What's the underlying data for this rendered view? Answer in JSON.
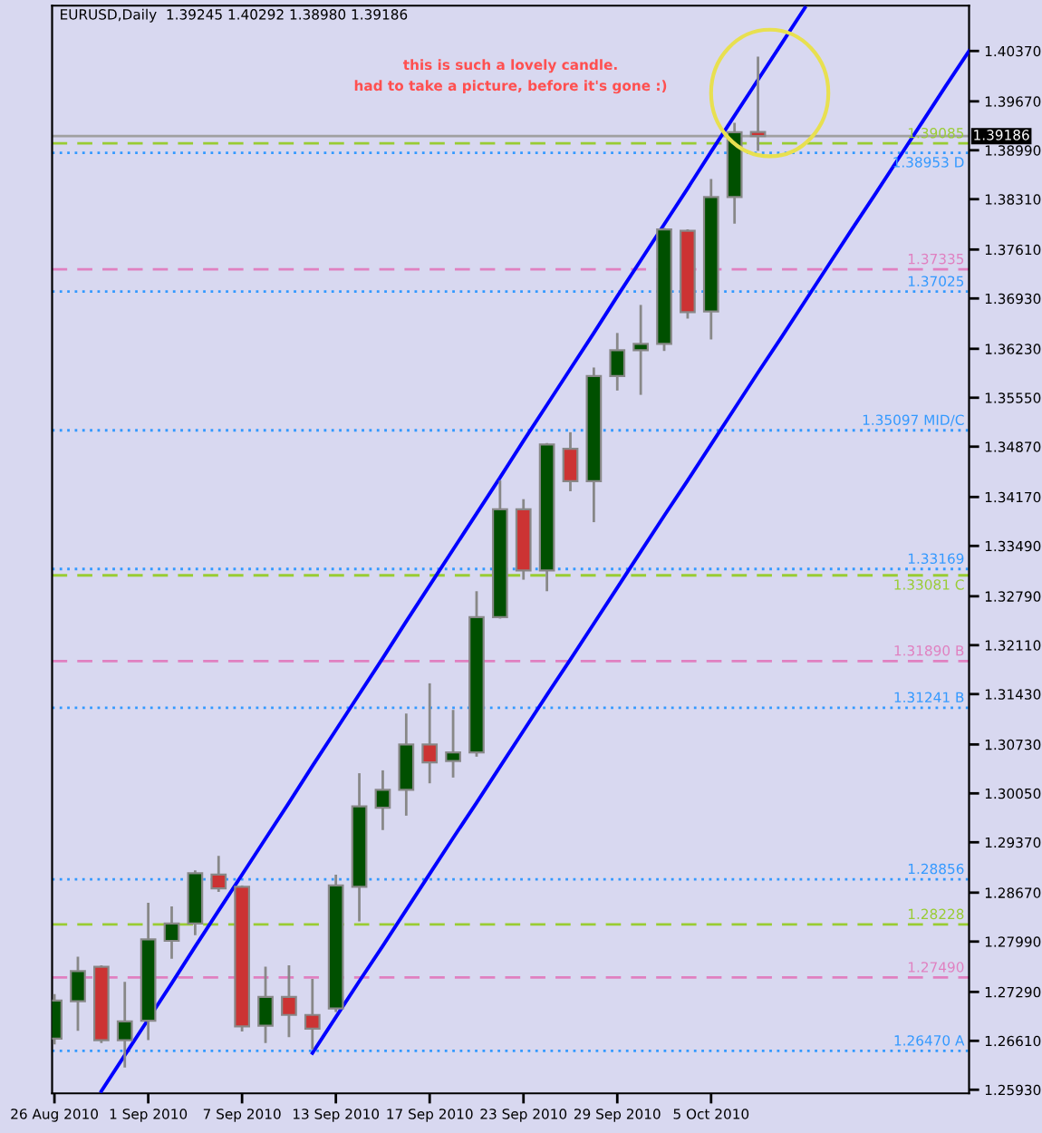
{
  "chart_data": {
    "type": "candlestick",
    "title": "EURUSD,Daily  1.39245 1.40292 1.38980 1.39186",
    "categories": [
      "26 Aug 2010",
      null,
      null,
      null,
      "1 Sep 2010",
      null,
      null,
      null,
      "7 Sep 2010",
      null,
      null,
      null,
      "13 Sep 2010",
      null,
      null,
      null,
      "17 Sep 2010",
      null,
      null,
      null,
      "23 Sep 2010",
      null,
      null,
      null,
      "29 Sep 2010",
      null,
      null,
      null,
      "5 Oct 2010",
      null,
      null,
      null,
      null,
      null,
      null,
      null,
      null,
      null,
      null,
      null
    ],
    "ohlc": [
      [
        1.2664,
        1.2726,
        1.2656,
        1.2717
      ],
      [
        1.2716,
        1.2778,
        1.2675,
        1.2758
      ],
      [
        1.2764,
        1.2766,
        1.2658,
        1.2662
      ],
      [
        1.2662,
        1.2743,
        1.2624,
        1.2688
      ],
      [
        1.2689,
        1.2853,
        1.2662,
        1.2802
      ],
      [
        1.28,
        1.2848,
        1.2775,
        1.2824
      ],
      [
        1.2824,
        1.2898,
        1.2808,
        1.2894
      ],
      [
        1.2892,
        1.2918,
        1.2868,
        1.2873
      ],
      [
        1.2875,
        1.2877,
        1.2674,
        1.2681
      ],
      [
        1.2682,
        1.2764,
        1.2658,
        1.2722
      ],
      [
        1.2722,
        1.2766,
        1.2666,
        1.2697
      ],
      [
        1.2697,
        1.2747,
        1.2649,
        1.2678
      ],
      [
        1.2706,
        1.2892,
        1.2701,
        1.2877
      ],
      [
        1.2875,
        1.3033,
        1.2827,
        1.2987
      ],
      [
        1.2985,
        1.3037,
        1.2954,
        1.301
      ],
      [
        1.301,
        1.3116,
        1.2974,
        1.3073
      ],
      [
        1.3073,
        1.3158,
        1.3019,
        1.3048
      ],
      [
        1.305,
        1.3121,
        1.3027,
        1.3062
      ],
      [
        1.3062,
        1.3286,
        1.3056,
        1.325
      ],
      [
        1.325,
        1.344,
        1.3248,
        1.34
      ],
      [
        1.34,
        1.3414,
        1.3302,
        1.3315
      ],
      [
        1.3315,
        1.3492,
        1.3286,
        1.349
      ],
      [
        1.3484,
        1.3507,
        1.3425,
        1.3439
      ],
      [
        1.3439,
        1.3597,
        1.3382,
        1.3585
      ],
      [
        1.3585,
        1.3645,
        1.3565,
        1.3621
      ],
      [
        1.3621,
        1.3684,
        1.3559,
        1.363
      ],
      [
        1.363,
        1.3791,
        1.362,
        1.3789
      ],
      [
        1.3787,
        1.3789,
        1.3665,
        1.3674
      ],
      [
        1.3675,
        1.3859,
        1.3636,
        1.3834
      ],
      [
        1.3834,
        1.3937,
        1.3797,
        1.3924
      ],
      [
        1.39245,
        1.40292,
        1.3898,
        1.39186
      ],
      null,
      null,
      null,
      null,
      null,
      null,
      null,
      null,
      null
    ],
    "colors": [
      "#005000",
      "#005000",
      "#cc3333",
      "#005000",
      "#005000",
      "#005000",
      "#005000",
      "#cc3333",
      "#cc3333",
      "#005000",
      "#cc3333",
      "#cc3333",
      "#005000",
      "#005000",
      "#005000",
      "#005000",
      "#cc3333",
      "#005000",
      "#005000",
      "#005000",
      "#cc3333",
      "#005000",
      "#cc3333",
      "#005000",
      "#005000",
      "#005000",
      "#005000",
      "#cc3333",
      "#005000",
      "#005000",
      "#cc3333",
      null,
      null,
      null,
      null,
      null,
      null,
      null,
      null,
      null
    ],
    "series": [
      {
        "type": "line",
        "color": "#0000ff",
        "values": [
          null,
          null,
          1.2591,
          1.2641,
          1.2691,
          1.2741,
          1.2792,
          1.2842,
          1.2892,
          1.2942,
          1.2992,
          1.3043,
          1.3093,
          1.3143,
          1.3193,
          1.3244,
          1.3294,
          1.3344,
          1.3394,
          1.3444,
          1.3495,
          1.3545,
          1.3595,
          1.3645,
          1.3696,
          1.3746,
          1.3796,
          1.3846,
          1.3897,
          1.3947,
          1.3997,
          1.4047,
          1.4097,
          null,
          null,
          null,
          null,
          null,
          null,
          null
        ]
      },
      {
        "type": "line",
        "color": "#0000ff",
        "values": [
          null,
          null,
          null,
          null,
          null,
          null,
          null,
          null,
          null,
          null,
          null,
          1.2644,
          1.2694,
          1.2744,
          1.2793,
          1.2843,
          1.2893,
          1.2943,
          1.2992,
          1.3042,
          1.3092,
          1.3142,
          1.3191,
          1.3241,
          1.3291,
          1.3341,
          1.3391,
          1.344,
          1.349,
          1.354,
          1.359,
          1.3639,
          1.3689,
          1.3739,
          1.3789,
          1.3838,
          1.3888,
          1.3938,
          1.3988,
          1.4037
        ]
      }
    ],
    "ylim": [
      1.2588,
      1.41
    ],
    "yticks": [
      {
        "value": 1.4037,
        "label": "1.40370"
      },
      {
        "value": 1.3967,
        "label": "1.39670"
      },
      {
        "value": 1.3899,
        "label": "1.38990"
      },
      {
        "value": 1.3831,
        "label": "1.38310"
      },
      {
        "value": 1.3761,
        "label": "1.37610"
      },
      {
        "value": 1.3693,
        "label": "1.36930"
      },
      {
        "value": 1.3623,
        "label": "1.36230"
      },
      {
        "value": 1.3555,
        "label": "1.35550"
      },
      {
        "value": 1.3487,
        "label": "1.34870"
      },
      {
        "value": 1.3417,
        "label": "1.34170"
      },
      {
        "value": 1.3349,
        "label": "1.33490"
      },
      {
        "value": 1.3279,
        "label": "1.32790"
      },
      {
        "value": 1.3211,
        "label": "1.32110"
      },
      {
        "value": 1.3143,
        "label": "1.31430"
      },
      {
        "value": 1.3073,
        "label": "1.30730"
      },
      {
        "value": 1.3005,
        "label": "1.30050"
      },
      {
        "value": 1.2937,
        "label": "1.29370"
      },
      {
        "value": 1.2867,
        "label": "1.28670"
      },
      {
        "value": 1.2799,
        "label": "1.27990"
      },
      {
        "value": 1.2729,
        "label": "1.27290"
      },
      {
        "value": 1.2661,
        "label": "1.26610"
      },
      {
        "value": 1.2593,
        "label": "1.25930"
      }
    ],
    "ref_lines": [
      {
        "axis": "y",
        "value": 1.39186,
        "label": "1.39186",
        "color": "#a0a0a0",
        "line_style": "solid"
      },
      {
        "axis": "y",
        "value": 1.39085,
        "label": "1.39085",
        "color": "#99cc33",
        "line_style": "dashed"
      },
      {
        "axis": "y",
        "value": 1.38953,
        "label": "1.38953 D",
        "color": "#3399ff",
        "line_style": "dotted"
      },
      {
        "axis": "y",
        "value": 1.37335,
        "label": "1.37335",
        "color": "#e080c0",
        "line_style": "dashed"
      },
      {
        "axis": "y",
        "value": 1.37025,
        "label": "1.37025",
        "color": "#3399ff",
        "line_style": "dotted"
      },
      {
        "axis": "y",
        "value": 1.35097,
        "label": "1.35097 MID/C",
        "color": "#3399ff",
        "line_style": "dotted"
      },
      {
        "axis": "y",
        "value": 1.33169,
        "label": "1.33169",
        "color": "#3399ff",
        "line_style": "dotted"
      },
      {
        "axis": "y",
        "value": 1.33081,
        "label": "1.33081 C",
        "color": "#99cc33",
        "line_style": "dashed"
      },
      {
        "axis": "y",
        "value": 1.3189,
        "label": "1.31890 B",
        "color": "#e080c0",
        "line_style": "dashed"
      },
      {
        "axis": "y",
        "value": 1.31241,
        "label": "1.31241 B",
        "color": "#3399ff",
        "line_style": "dotted"
      },
      {
        "axis": "y",
        "value": 1.28856,
        "label": "1.28856",
        "color": "#3399ff",
        "line_style": "dotted"
      },
      {
        "axis": "y",
        "value": 1.28228,
        "label": "1.28228",
        "color": "#99cc33",
        "line_style": "dashed"
      },
      {
        "axis": "y",
        "value": 1.2749,
        "label": "1.27490",
        "color": "#e080c0",
        "line_style": "dashed"
      },
      {
        "axis": "y",
        "value": 1.2647,
        "label": "1.26470 A",
        "color": "#3399ff",
        "line_style": "dotted"
      }
    ],
    "annotations": [
      "this is such a lovely candle.\nhad to take a picture, before it's gone :)"
    ],
    "grid": false,
    "legend": false
  }
}
